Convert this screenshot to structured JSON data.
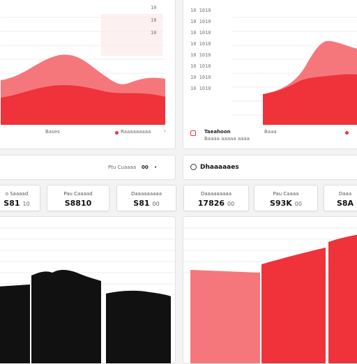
{
  "top_left_chart": {
    "yticks": [
      "10",
      "10",
      "10"
    ],
    "legend": [
      "Bases",
      "Raaaaaaaaa"
    ]
  },
  "top_right_chart": {
    "yticks": [
      "10 1010",
      "10 1010",
      "10 1010",
      "10 1010",
      "10 1010",
      "10 1010",
      "10 1010",
      "10 1010"
    ],
    "legend_title": "Taeahoon",
    "legend_sub": "Baaaa aaaaa aaaa",
    "legend_item": "Baaa"
  },
  "toolbar": {
    "label": "Ptu Cuaaaa",
    "value": "00",
    "arrow": "›"
  },
  "dashboard": {
    "title": "Dhaaaaaes"
  },
  "stats": [
    {
      "label": "o Saaaad",
      "value": "S81",
      "sub": "10"
    },
    {
      "label": "Pau Caaaad",
      "value": "S8810",
      "sub": ""
    },
    {
      "label": "Daaaaaaaaa",
      "value": "S81",
      "sub": "00"
    },
    {
      "label": "Daaaaaaaaa",
      "value": "17826",
      "sub": "00"
    },
    {
      "label": "Pau Caaaa",
      "value": "S93K",
      "sub": "00"
    },
    {
      "label": "Daaa",
      "value": "S8A",
      "sub": ""
    }
  ],
  "colors": {
    "accent": "#f0323a",
    "accent_light": "#f6777b",
    "dark": "#111111"
  }
}
